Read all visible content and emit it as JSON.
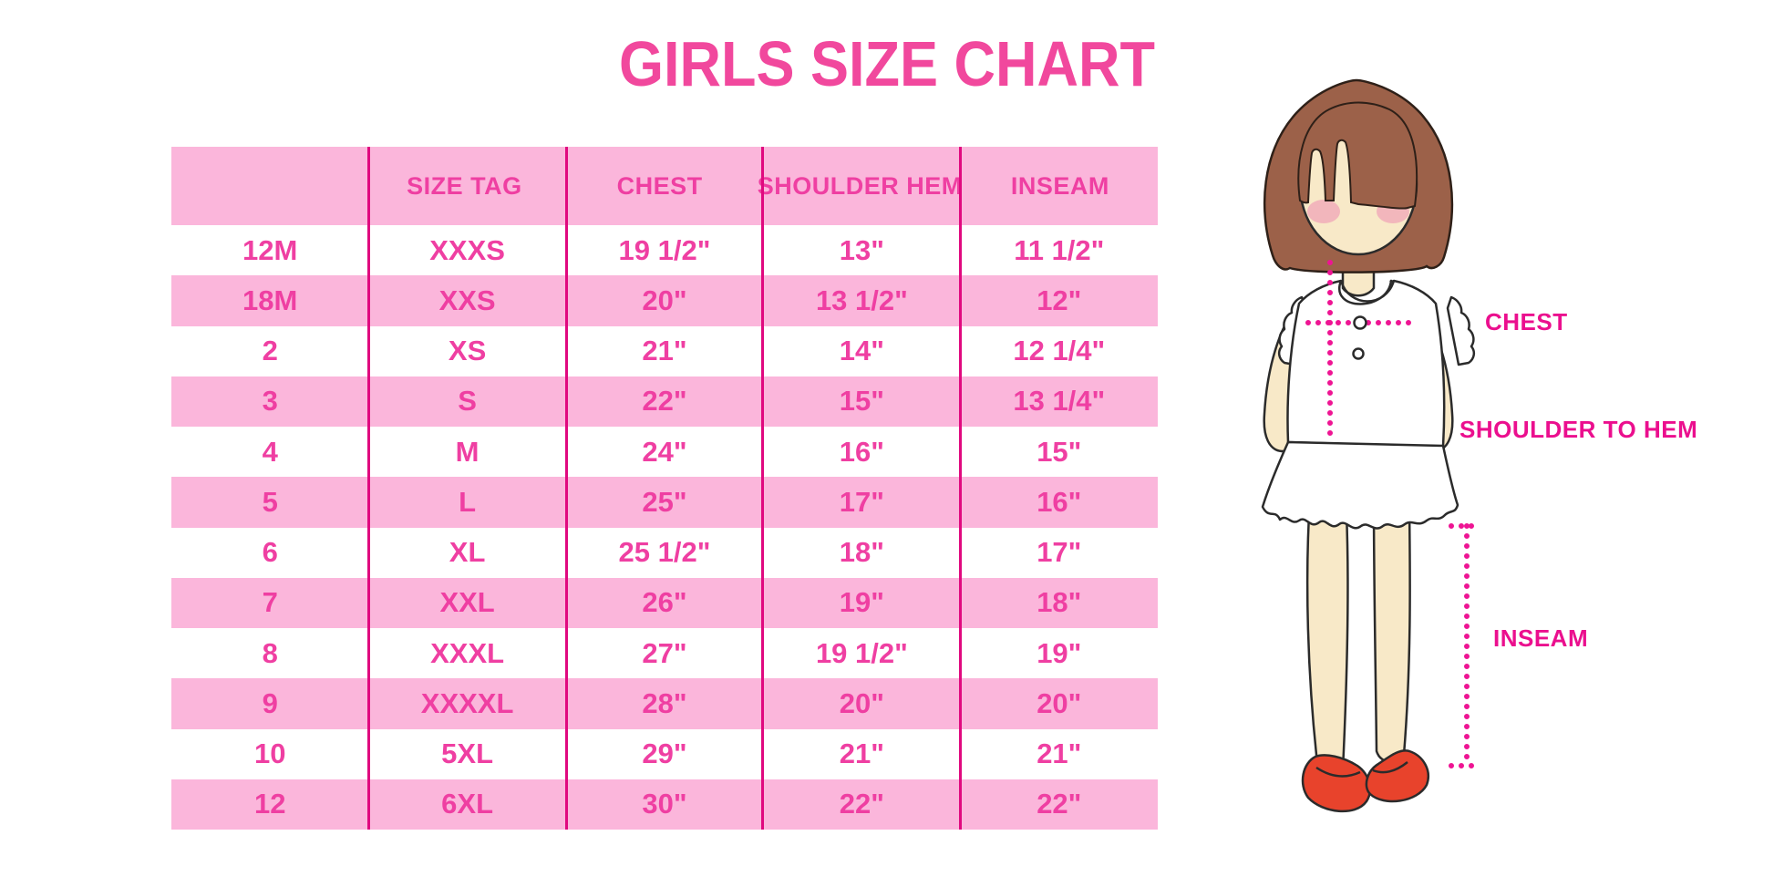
{
  "title": "GIRLS SIZE CHART",
  "table": {
    "columns": [
      "",
      "SIZE TAG",
      "CHEST",
      "SHOULDER HEM",
      "INSEAM"
    ],
    "rows": [
      [
        "12M",
        "XXXS",
        "19 1/2\"",
        "13\"",
        "11 1/2\""
      ],
      [
        "18M",
        "XXS",
        "20\"",
        "13 1/2\"",
        "12\""
      ],
      [
        "2",
        "XS",
        "21\"",
        "14\"",
        "12 1/4\""
      ],
      [
        "3",
        "S",
        "22\"",
        "15\"",
        "13 1/4\""
      ],
      [
        "4",
        "M",
        "24\"",
        "16\"",
        "15\""
      ],
      [
        "5",
        "L",
        "25\"",
        "17\"",
        "16\""
      ],
      [
        "6",
        "XL",
        "25 1/2\"",
        "18\"",
        "17\""
      ],
      [
        "7",
        "XXL",
        "26\"",
        "19\"",
        "18\""
      ],
      [
        "8",
        "XXXL",
        "27\"",
        "19 1/2\"",
        "19\""
      ],
      [
        "9",
        "XXXXL",
        "28\"",
        "20\"",
        "20\""
      ],
      [
        "10",
        "5XL",
        "29\"",
        "21\"",
        "21\""
      ],
      [
        "12",
        "6XL",
        "30\"",
        "22\"",
        "22\""
      ]
    ]
  },
  "diagram": {
    "labels": {
      "chest": "CHEST",
      "shoulder_to_hem": "SHOULDER TO HEM",
      "inseam": "INSEAM"
    }
  },
  "colors": {
    "title_pink": "#F1489D",
    "row_pink": "#FBB6DB",
    "divider_magenta": "#E0097F",
    "table_text_pink": "#EF3FA2",
    "label_magenta": "#EB0F8E",
    "dotted_line_magenta": "#EE1493",
    "hair_brown": "#9C6149",
    "skin": "#F8E9C8",
    "blush": "#F0A6B8",
    "shoe_red": "#E8432C"
  },
  "chart_data": {
    "type": "table",
    "title": "GIRLS SIZE CHART",
    "columns": [
      "",
      "SIZE TAG",
      "CHEST",
      "SHOULDER HEM",
      "INSEAM"
    ],
    "rows": [
      [
        "12M",
        "XXXS",
        "19 1/2\"",
        "13\"",
        "11 1/2\""
      ],
      [
        "18M",
        "XXS",
        "20\"",
        "13 1/2\"",
        "12\""
      ],
      [
        "2",
        "XS",
        "21\"",
        "14\"",
        "12 1/4\""
      ],
      [
        "3",
        "S",
        "22\"",
        "15\"",
        "13 1/4\""
      ],
      [
        "4",
        "M",
        "24\"",
        "16\"",
        "15\""
      ],
      [
        "5",
        "L",
        "25\"",
        "17\"",
        "16\""
      ],
      [
        "6",
        "XL",
        "25 1/2\"",
        "18\"",
        "17\""
      ],
      [
        "7",
        "XXL",
        "26\"",
        "19\"",
        "18\""
      ],
      [
        "8",
        "XXXL",
        "27\"",
        "19 1/2\"",
        "19\""
      ],
      [
        "9",
        "XXXXL",
        "28\"",
        "20\"",
        "20\""
      ],
      [
        "10",
        "5XL",
        "29\"",
        "21\"",
        "21\""
      ],
      [
        "12",
        "6XL",
        "30\"",
        "22\"",
        "22\""
      ]
    ],
    "annotations": [
      "CHEST",
      "SHOULDER TO HEM",
      "INSEAM"
    ],
    "legend_position": "none",
    "grid": "vertical-dividers-only"
  }
}
